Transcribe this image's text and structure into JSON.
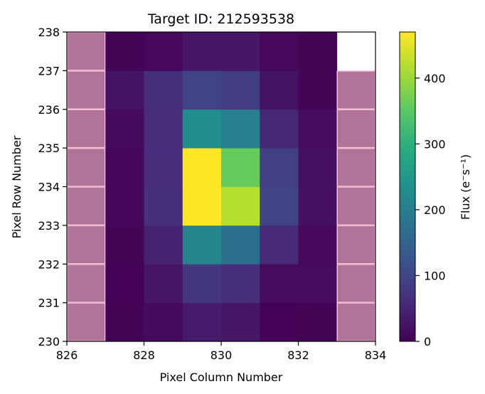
{
  "chart_data": {
    "type": "heatmap",
    "title": "Target ID: 212593538",
    "xlabel": "Pixel Column Number",
    "ylabel": "Pixel Row Number",
    "xlim": [
      826,
      834
    ],
    "ylim": [
      230,
      238
    ],
    "x_ticks": [
      "826",
      "828",
      "830",
      "832",
      "834"
    ],
    "y_ticks": [
      "230",
      "231",
      "232",
      "233",
      "234",
      "235",
      "236",
      "237",
      "238"
    ],
    "columns": [
      826,
      827,
      828,
      829,
      830,
      831,
      832,
      833
    ],
    "rows": [
      230,
      231,
      232,
      233,
      234,
      235,
      236,
      237
    ],
    "flux": [
      [
        null,
        5,
        12,
        35,
        30,
        3,
        5,
        null
      ],
      [
        null,
        3,
        30,
        75,
        65,
        15,
        15,
        null
      ],
      [
        null,
        5,
        45,
        215,
        175,
        55,
        10,
        null
      ],
      [
        null,
        8,
        65,
        470,
        420,
        95,
        20,
        null
      ],
      [
        null,
        8,
        60,
        470,
        360,
        90,
        20,
        null
      ],
      [
        null,
        12,
        60,
        230,
        205,
        50,
        15,
        null
      ],
      [
        null,
        25,
        65,
        95,
        85,
        25,
        5,
        null
      ],
      [
        null,
        5,
        10,
        30,
        30,
        10,
        5,
        null
      ]
    ],
    "mask": [
      [
        1,
        0,
        0,
        0,
        0,
        0,
        0,
        1
      ],
      [
        1,
        0,
        0,
        0,
        0,
        0,
        0,
        1
      ],
      [
        1,
        0,
        0,
        0,
        0,
        0,
        0,
        1
      ],
      [
        1,
        0,
        0,
        0,
        0,
        0,
        0,
        1
      ],
      [
        1,
        0,
        0,
        0,
        0,
        0,
        0,
        1
      ],
      [
        1,
        0,
        0,
        0,
        0,
        0,
        0,
        1
      ],
      [
        1,
        0,
        0,
        0,
        0,
        0,
        0,
        1
      ],
      [
        1,
        0,
        0,
        0,
        0,
        0,
        0,
        0
      ]
    ],
    "mask_color": "#b2739b",
    "mask_edge_color": "#f5c6d6",
    "colormap": "viridis",
    "colorbar": {
      "label": "Flux (e⁻s⁻¹)",
      "min": 0,
      "max": 470,
      "ticks": [
        "0",
        "100",
        "200",
        "300",
        "400"
      ],
      "tick_values": [
        0,
        100,
        200,
        300,
        400
      ]
    }
  }
}
